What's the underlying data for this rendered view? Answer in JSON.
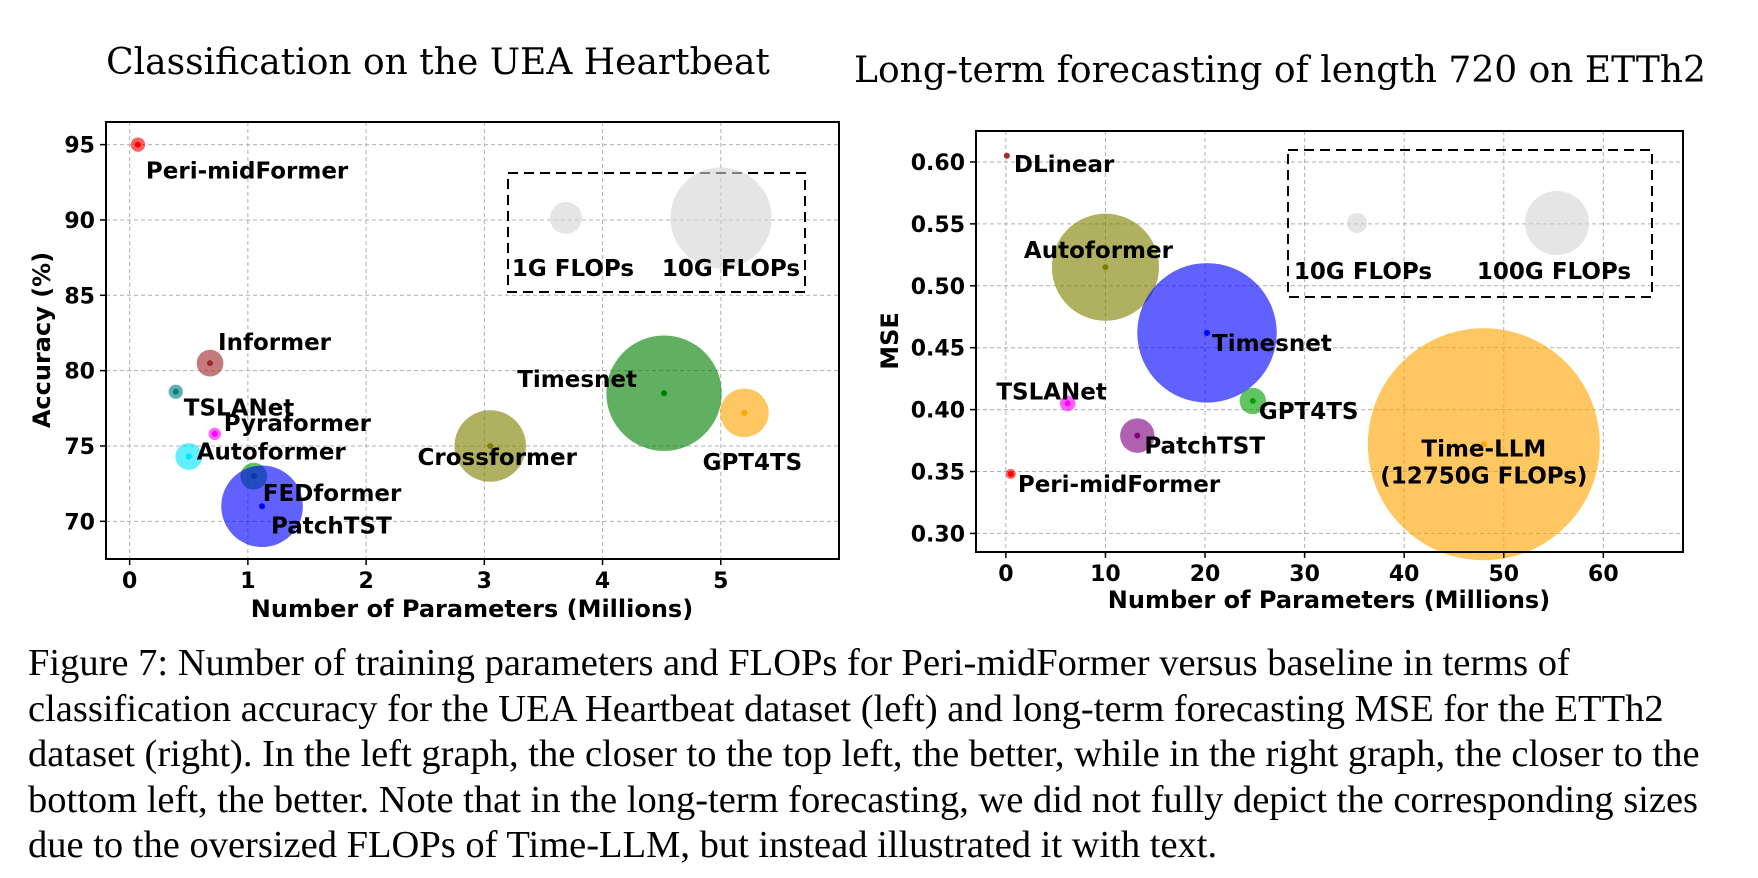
{
  "chart_data": [
    {
      "type": "bubble-scatter",
      "title": "Classification on the UEA Heartbeat",
      "xlabel": "Number of Parameters (Millions)",
      "ylabel": "Accuracy (%)",
      "xlim": [
        -0.2,
        6.0
      ],
      "ylim": [
        67.5,
        96.5
      ],
      "xticks": [
        "0",
        "1",
        "2",
        "3",
        "4",
        "5"
      ],
      "xtick_values": [
        0,
        1,
        2,
        3,
        4,
        5
      ],
      "yticks": [
        "70",
        "75",
        "80",
        "85",
        "90",
        "95"
      ],
      "ytick_values": [
        70,
        75,
        80,
        85,
        90,
        95
      ],
      "grid": true,
      "points": [
        {
          "name": "Peri-midFormer",
          "x": 0.07,
          "y": 95.0,
          "flops_g": 0.2,
          "color": "#ff0000",
          "label_pos": "below-right"
        },
        {
          "name": "Informer",
          "x": 0.68,
          "y": 80.5,
          "flops_g": 0.7,
          "color": "#a0292c",
          "label_pos": "above-right"
        },
        {
          "name": "TSLANet",
          "x": 0.39,
          "y": 78.6,
          "flops_g": 0.2,
          "color": "#008080",
          "label_pos": "below-right"
        },
        {
          "name": "Pyraformer",
          "x": 0.72,
          "y": 75.8,
          "flops_g": 0.15,
          "color": "#ff00ff",
          "label_pos": "above-right"
        },
        {
          "name": "Autoformer",
          "x": 0.5,
          "y": 74.3,
          "flops_g": 0.7,
          "color": "#00e5ff",
          "label_pos": "right"
        },
        {
          "name": "FEDformer",
          "x": 1.05,
          "y": 73.0,
          "flops_g": 0.7,
          "color": "#00a000",
          "label_pos": "below-right"
        },
        {
          "name": "PatchTST",
          "x": 1.12,
          "y": 71.0,
          "flops_g": 6.5,
          "color": "#0000ff",
          "label_pos": "below-right"
        },
        {
          "name": "Crossformer",
          "x": 3.05,
          "y": 75.0,
          "flops_g": 5.0,
          "color": "#808000",
          "label_pos": "center"
        },
        {
          "name": "Timesnet",
          "x": 4.52,
          "y": 78.5,
          "flops_g": 13.0,
          "color": "#008000",
          "label_pos": "above-left"
        },
        {
          "name": "GPT4TS",
          "x": 5.2,
          "y": 77.2,
          "flops_g": 2.3,
          "color": "#ffa500",
          "label_pos": "below"
        }
      ],
      "legend": {
        "position": "top-right",
        "entries": [
          {
            "label": "1G FLOPs",
            "flops_g": 1
          },
          {
            "label": "10G FLOPs",
            "flops_g": 10
          }
        ]
      }
    },
    {
      "type": "bubble-scatter",
      "title": "Long-term forecasting of length 720 on ETTh2",
      "xlabel": "Number of Parameters (Millions)",
      "ylabel": "MSE",
      "xlim": [
        -3,
        68
      ],
      "ylim": [
        0.285,
        0.625
      ],
      "xticks": [
        "0",
        "10",
        "20",
        "30",
        "40",
        "50",
        "60"
      ],
      "xtick_values": [
        0,
        10,
        20,
        30,
        40,
        50,
        60
      ],
      "yticks": [
        "0.30",
        "0.35",
        "0.40",
        "0.45",
        "0.50",
        "0.55",
        "0.60"
      ],
      "ytick_values": [
        0.3,
        0.35,
        0.4,
        0.45,
        0.5,
        0.55,
        0.6
      ],
      "grid": true,
      "points": [
        {
          "name": "DLinear",
          "x": 0.1,
          "y": 0.605,
          "flops_g": 0.5,
          "color": "#a0292c",
          "label_pos": "below-right"
        },
        {
          "name": "Autoformer",
          "x": 10.0,
          "y": 0.515,
          "flops_g": 280,
          "color": "#808000",
          "label_pos": "above-left"
        },
        {
          "name": "Timesnet",
          "x": 20.2,
          "y": 0.462,
          "flops_g": 475,
          "color": "#0000ff",
          "label_pos": "below-right"
        },
        {
          "name": "TSLANet",
          "x": 6.2,
          "y": 0.405,
          "flops_g": 6,
          "color": "#ff00ff",
          "label_pos": "above-left"
        },
        {
          "name": "GPT4TS",
          "x": 24.8,
          "y": 0.407,
          "flops_g": 17,
          "color": "#00a000",
          "label_pos": "below-right"
        },
        {
          "name": "PatchTST",
          "x": 13.2,
          "y": 0.379,
          "flops_g": 29,
          "color": "#800080",
          "label_pos": "below-right"
        },
        {
          "name": "Peri-midFormer",
          "x": 0.5,
          "y": 0.348,
          "flops_g": 2.5,
          "color": "#ff0000",
          "label_pos": "below-right"
        },
        {
          "name": "Time-LLM",
          "x": 48.0,
          "y": 0.372,
          "flops_g": 12750,
          "color": "#ffa500",
          "label_pos": "center",
          "annotation": "(12750G FLOPs)",
          "note": "size not drawn to scale"
        }
      ],
      "legend": {
        "position": "top-right",
        "entries": [
          {
            "label": "10G FLOPs",
            "flops_g": 10
          },
          {
            "label": "100G FLOPs",
            "flops_g": 100
          }
        ]
      }
    }
  ],
  "caption": "Figure 7: Number of training parameters and FLOPs for Peri-midFormer versus baseline in terms of classification accuracy for the UEA Heartbeat dataset (left) and long-term forecasting MSE for the ETTh2 dataset (right). In the left graph, the closer to the top left, the better, while in the right graph, the closer to the bottom left, the better. Note that in the long-term forecasting, we did not fully depict the corresponding sizes due to the oversized FLOPs of Time-LLM, but instead illustrated it with text."
}
